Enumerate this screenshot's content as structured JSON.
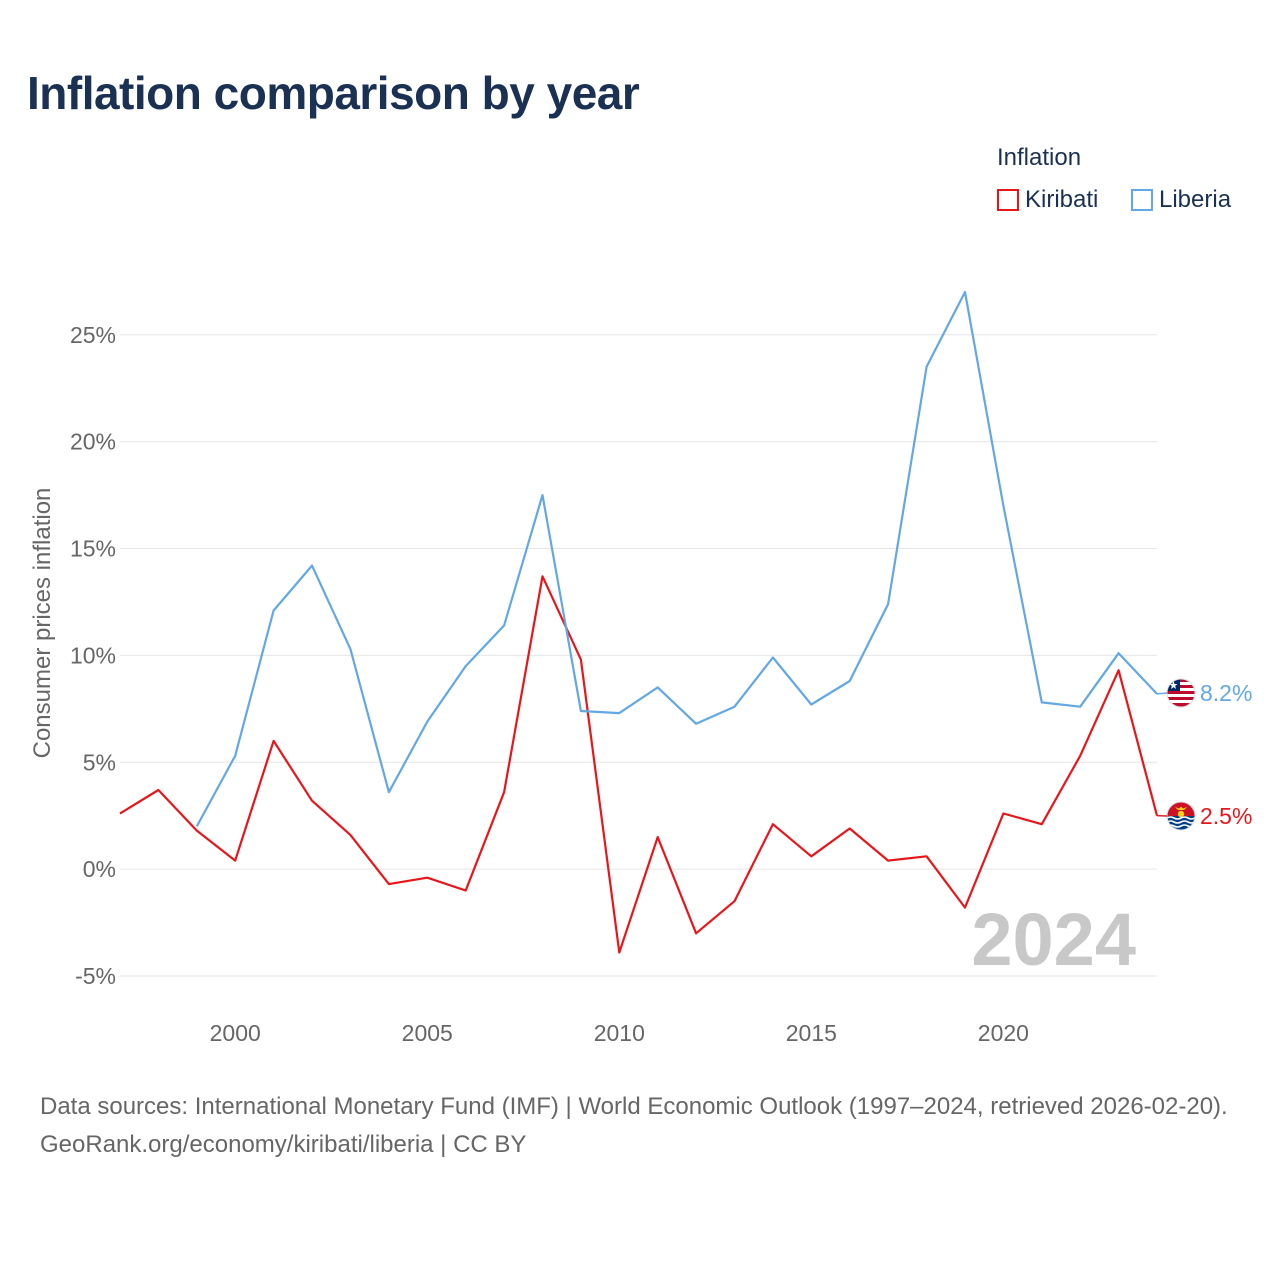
{
  "title": "Inflation comparison by year",
  "legend": {
    "title": "Inflation",
    "items": [
      {
        "name": "Kiribati",
        "color": "#e8161b"
      },
      {
        "name": "Liberia",
        "color": "#62a8e5"
      }
    ]
  },
  "chart_data": {
    "type": "line",
    "ylabel": "Consumer prices inflation",
    "ylim": [
      -5,
      27
    ],
    "yticks": [
      -5,
      0,
      5,
      10,
      15,
      20,
      25
    ],
    "ytick_labels": [
      "-5%",
      "0%",
      "5%",
      "10%",
      "15%",
      "20%",
      "25%"
    ],
    "xlim": [
      1997,
      2024
    ],
    "xticks": [
      2000,
      2005,
      2010,
      2015,
      2020
    ],
    "xtick_labels": [
      "2000",
      "2005",
      "2010",
      "2015",
      "2020"
    ],
    "year_watermark": "2024",
    "series": [
      {
        "name": "Kiribati",
        "color": "#e8161b",
        "end_label": "2.5%",
        "points": [
          [
            1997,
            2.6
          ],
          [
            1998,
            3.7
          ],
          [
            1999,
            1.8
          ],
          [
            2000,
            0.4
          ],
          [
            2001,
            6.0
          ],
          [
            2002,
            3.2
          ],
          [
            2003,
            1.6
          ],
          [
            2004,
            -0.7
          ],
          [
            2005,
            -0.4
          ],
          [
            2006,
            -1.0
          ],
          [
            2007,
            3.6
          ],
          [
            2008,
            13.7
          ],
          [
            2009,
            9.8
          ],
          [
            2010,
            -3.9
          ],
          [
            2011,
            1.5
          ],
          [
            2012,
            -3.0
          ],
          [
            2013,
            -1.5
          ],
          [
            2014,
            2.1
          ],
          [
            2015,
            0.6
          ],
          [
            2016,
            1.9
          ],
          [
            2017,
            0.4
          ],
          [
            2018,
            0.6
          ],
          [
            2019,
            -1.8
          ],
          [
            2020,
            2.6
          ],
          [
            2021,
            2.1
          ],
          [
            2022,
            5.3
          ],
          [
            2023,
            9.3
          ],
          [
            2024,
            2.5
          ]
        ]
      },
      {
        "name": "Liberia",
        "color": "#62a8e5",
        "end_label": "8.2%",
        "points": [
          [
            1999,
            2.0
          ],
          [
            2000,
            5.3
          ],
          [
            2001,
            12.1
          ],
          [
            2002,
            14.2
          ],
          [
            2003,
            10.3
          ],
          [
            2004,
            3.6
          ],
          [
            2005,
            6.9
          ],
          [
            2006,
            9.5
          ],
          [
            2007,
            11.4
          ],
          [
            2008,
            17.5
          ],
          [
            2009,
            7.4
          ],
          [
            2010,
            7.3
          ],
          [
            2011,
            8.5
          ],
          [
            2012,
            6.8
          ],
          [
            2013,
            7.6
          ],
          [
            2014,
            9.9
          ],
          [
            2015,
            7.7
          ],
          [
            2016,
            8.8
          ],
          [
            2017,
            12.4
          ],
          [
            2018,
            23.5
          ],
          [
            2019,
            27.0
          ],
          [
            2020,
            17.0
          ],
          [
            2021,
            7.8
          ],
          [
            2022,
            7.6
          ],
          [
            2023,
            10.1
          ],
          [
            2024,
            8.2
          ]
        ]
      }
    ]
  },
  "footer": {
    "sources": "Data sources: International Monetary Fund (IMF) | World Economic Outlook (1997–2024, retrieved 2026-02-20).",
    "attribution": "GeoRank.org/economy/kiribati/liberia | CC BY"
  }
}
